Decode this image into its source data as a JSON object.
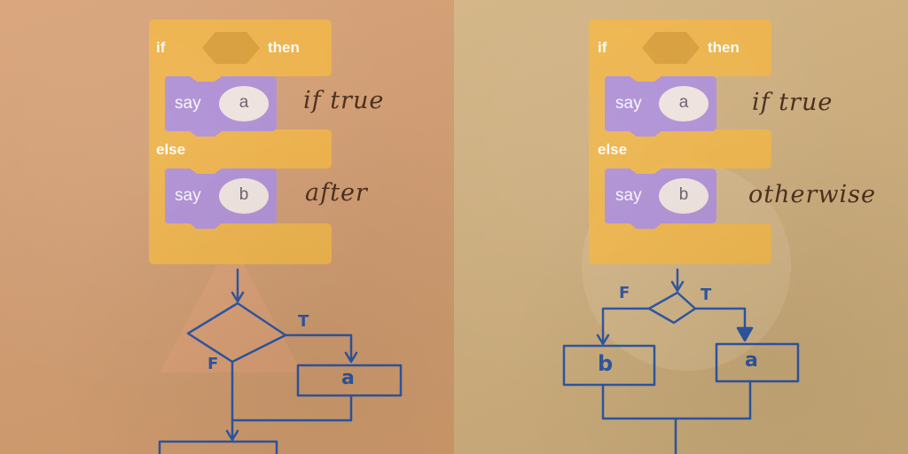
{
  "colors": {
    "block_orange": "#f0b548",
    "block_purple": "#ad8fd9",
    "pen_blue": "#2d55a0",
    "note_brown": "#4a2e1c"
  },
  "left": {
    "if_label": "if",
    "then_label": "then",
    "else_label": "else",
    "say1": {
      "label": "say",
      "arg": "a"
    },
    "say2": {
      "label": "say",
      "arg": "b"
    },
    "note1": "if true",
    "note2": "after",
    "flow": {
      "true_label": "T",
      "false_label": "F",
      "box_a": "a"
    }
  },
  "right": {
    "if_label": "if",
    "then_label": "then",
    "else_label": "else",
    "say1": {
      "label": "say",
      "arg": "a"
    },
    "say2": {
      "label": "say",
      "arg": "b"
    },
    "note1": "if true",
    "note2": "otherwise",
    "flow": {
      "false_label": "F",
      "true_label": "T",
      "box_b": "b",
      "box_a": "a"
    }
  }
}
